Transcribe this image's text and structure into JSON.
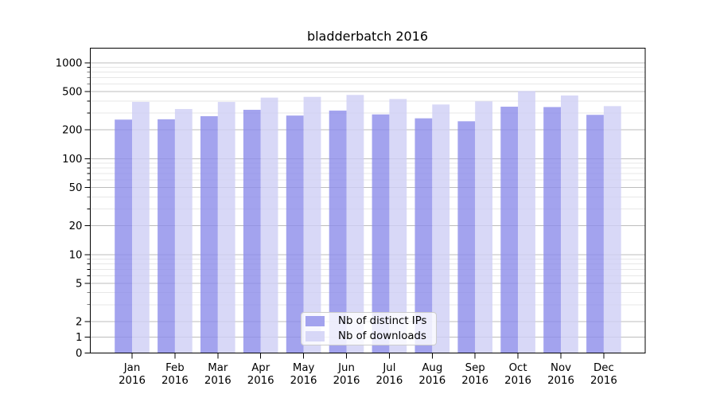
{
  "chart_data": {
    "type": "bar",
    "title": "bladderbatch 2016",
    "x_year": "2016",
    "categories": [
      "Jan",
      "Feb",
      "Mar",
      "Apr",
      "May",
      "Jun",
      "Jul",
      "Aug",
      "Sep",
      "Oct",
      "Nov",
      "Dec"
    ],
    "series": [
      {
        "name": "Nb of distinct IPs",
        "color": "#8c8cea",
        "values": [
          256,
          258,
          278,
          324,
          282,
          318,
          290,
          264,
          246,
          349,
          346,
          287
        ]
      },
      {
        "name": "Nb of downloads",
        "color": "#cecef5",
        "values": [
          392,
          330,
          391,
          434,
          442,
          463,
          420,
          368,
          397,
          509,
          457,
          354
        ]
      }
    ],
    "y_ticks": [
      0,
      1,
      2,
      5,
      10,
      20,
      50,
      100,
      200,
      500,
      1000
    ],
    "y_scale": "symlog",
    "ylim": [
      0,
      1400
    ],
    "xlabel": "",
    "ylabel": "",
    "grid": "both",
    "legend_position": "lower center"
  },
  "colors": {
    "background": "#ffffff",
    "major_grid": "#bdbdbd",
    "minor_grid": "#e7e7e7",
    "spine": "#000000",
    "text": "#000000",
    "legend_border": "#cccccc"
  }
}
